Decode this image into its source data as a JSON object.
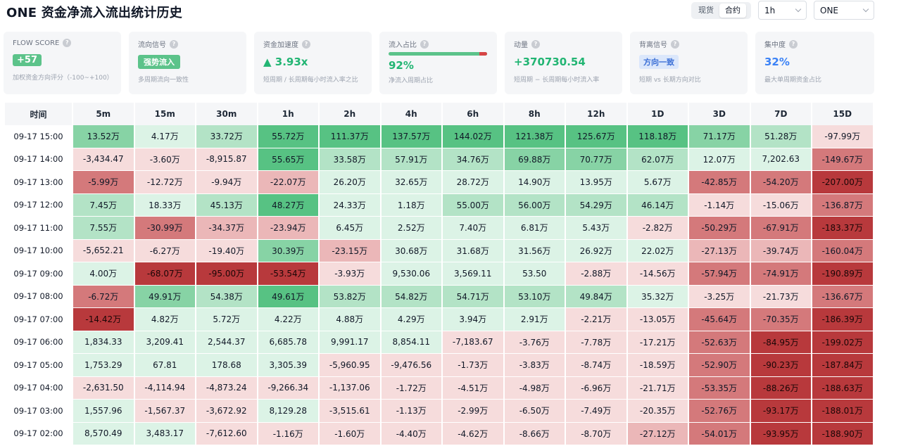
{
  "header": {
    "title": "ONE 资金净流入流出统计历史",
    "market_tabs": [
      {
        "label": "现货",
        "active": false
      },
      {
        "label": "合约",
        "active": true
      }
    ],
    "interval_select": "1h",
    "symbol_select": "ONE"
  },
  "cards": [
    {
      "label": "FLOW SCORE",
      "value": "+57",
      "value_style": "badge-green",
      "sub": "加权资金方向评分（-100~+100）"
    },
    {
      "label": "流向信号",
      "value": "强势流入",
      "value_style": "badge-green-sm",
      "sub": "多周期流向一致性"
    },
    {
      "label": "资金加速度",
      "value": "▲ 3.93x",
      "value_style": "green",
      "sub": "短周期 / 长周期每小时流入率之比"
    },
    {
      "label": "流入占比",
      "value": "92%",
      "value_style": "green",
      "sub": "净流入周期占比",
      "ratio": 0.92
    },
    {
      "label": "动量",
      "value": "+370730.54",
      "value_style": "green",
      "sub": "短周期 − 长周期每小时流入率"
    },
    {
      "label": "背离信号",
      "value": "方向一致",
      "value_style": "badge-blue",
      "sub": "短期 vs 长期方向对比"
    },
    {
      "label": "集中度",
      "value": "32%",
      "value_style": "blue",
      "sub": "最大单周期资金占比"
    }
  ],
  "help_icon": "question-circle-icon",
  "colors": {
    "positive_light": "#dcf3e6",
    "positive_strong": "#57c283",
    "negative_light": "#f6dcdc",
    "negative_strong": "#b8393c"
  },
  "table": {
    "time_header": "时间",
    "columns": [
      "5m",
      "15m",
      "30m",
      "1h",
      "2h",
      "4h",
      "6h",
      "8h",
      "12h",
      "1D",
      "3D",
      "7D",
      "15D"
    ],
    "rows": [
      {
        "time": "09-17 15:00",
        "cells": [
          "13.52万",
          "4.17万",
          "33.72万",
          "55.72万",
          "111.37万",
          "137.57万",
          "144.02万",
          "121.38万",
          "125.67万",
          "118.18万",
          "71.17万",
          "51.28万",
          "-97.99万"
        ],
        "levels": [
          3,
          1,
          2,
          4,
          4,
          4,
          4,
          4,
          4,
          4,
          3,
          2,
          -1
        ]
      },
      {
        "time": "09-17 14:00",
        "cells": [
          "-3,434.47",
          "-3.60万",
          "-8,915.87",
          "55.65万",
          "33.58万",
          "57.91万",
          "34.76万",
          "69.88万",
          "70.77万",
          "62.07万",
          "12.07万",
          "7,202.63",
          "-149.67万"
        ],
        "levels": [
          -1,
          -1,
          -1,
          4,
          2,
          2,
          2,
          3,
          3,
          2,
          1,
          1,
          -3
        ]
      },
      {
        "time": "09-17 13:00",
        "cells": [
          "-5.99万",
          "-12.72万",
          "-9.94万",
          "-22.07万",
          "26.20万",
          "32.65万",
          "28.72万",
          "14.90万",
          "13.95万",
          "5.67万",
          "-42.85万",
          "-54.20万",
          "-207.00万"
        ],
        "levels": [
          -3,
          -1,
          -1,
          -2,
          1,
          1,
          1,
          1,
          1,
          1,
          -3,
          -3,
          -4
        ]
      },
      {
        "time": "09-17 12:00",
        "cells": [
          "7.45万",
          "18.33万",
          "45.13万",
          "48.27万",
          "24.33万",
          "1.18万",
          "55.00万",
          "56.00万",
          "54.29万",
          "46.14万",
          "-1.14万",
          "-15.06万",
          "-136.87万"
        ],
        "levels": [
          2,
          1,
          2,
          4,
          1,
          1,
          2,
          2,
          2,
          2,
          -1,
          -1,
          -3
        ]
      },
      {
        "time": "09-17 11:00",
        "cells": [
          "7.55万",
          "-30.99万",
          "-34.37万",
          "-23.94万",
          "6.45万",
          "2.52万",
          "7.40万",
          "6.81万",
          "5.43万",
          "-2.82万",
          "-50.29万",
          "-67.91万",
          "-183.37万"
        ],
        "levels": [
          2,
          -3,
          -2,
          -2,
          1,
          1,
          1,
          1,
          1,
          -1,
          -3,
          -3,
          -4
        ]
      },
      {
        "time": "09-17 10:00",
        "cells": [
          "-5,652.21",
          "-6.27万",
          "-19.40万",
          "30.39万",
          "-23.15万",
          "30.68万",
          "31.68万",
          "31.56万",
          "26.92万",
          "22.02万",
          "-27.13万",
          "-39.74万",
          "-160.04万"
        ],
        "levels": [
          -1,
          -1,
          -1,
          3,
          -2,
          1,
          1,
          1,
          1,
          1,
          -2,
          -2,
          -3
        ]
      },
      {
        "time": "09-17 09:00",
        "cells": [
          "4.00万",
          "-68.07万",
          "-95.00万",
          "-53.54万",
          "-3.93万",
          "9,530.06",
          "3,569.11",
          "53.50",
          "-2.88万",
          "-14.56万",
          "-57.94万",
          "-74.91万",
          "-190.89万"
        ],
        "levels": [
          1,
          -4,
          -4,
          -4,
          -1,
          1,
          1,
          1,
          -1,
          -1,
          -3,
          -3,
          -4
        ]
      },
      {
        "time": "09-17 08:00",
        "cells": [
          "-6.72万",
          "49.91万",
          "54.38万",
          "49.61万",
          "53.82万",
          "54.82万",
          "54.71万",
          "53.10万",
          "49.84万",
          "35.32万",
          "-3.25万",
          "-21.73万",
          "-136.67万"
        ],
        "levels": [
          -3,
          3,
          2,
          4,
          2,
          2,
          2,
          2,
          2,
          1,
          -1,
          -1,
          -3
        ]
      },
      {
        "time": "09-17 07:00",
        "cells": [
          "-14.42万",
          "4.82万",
          "5.72万",
          "4.22万",
          "4.88万",
          "4.29万",
          "3.94万",
          "2.91万",
          "-2.21万",
          "-13.05万",
          "-45.64万",
          "-70.35万",
          "-186.39万"
        ],
        "levels": [
          -4,
          1,
          1,
          1,
          1,
          1,
          1,
          1,
          -1,
          -1,
          -3,
          -3,
          -4
        ]
      },
      {
        "time": "09-17 06:00",
        "cells": [
          "1,834.33",
          "3,209.41",
          "2,544.37",
          "6,685.78",
          "9,991.17",
          "8,854.11",
          "-7,183.67",
          "-3.76万",
          "-7.78万",
          "-17.21万",
          "-52.63万",
          "-84.95万",
          "-199.02万"
        ],
        "levels": [
          1,
          1,
          1,
          1,
          1,
          1,
          -1,
          -1,
          -1,
          -1,
          -3,
          -4,
          -4
        ]
      },
      {
        "time": "09-17 05:00",
        "cells": [
          "1,753.29",
          "67.81",
          "178.68",
          "3,305.39",
          "-5,960.95",
          "-9,476.56",
          "-1.73万",
          "-3.83万",
          "-8.74万",
          "-18.59万",
          "-52.90万",
          "-90.23万",
          "-187.84万"
        ],
        "levels": [
          1,
          1,
          1,
          1,
          -1,
          -1,
          -1,
          -1,
          -1,
          -1,
          -3,
          -4,
          -4
        ]
      },
      {
        "time": "09-17 04:00",
        "cells": [
          "-2,631.50",
          "-4,114.94",
          "-4,873.24",
          "-9,266.34",
          "-1,137.06",
          "-1.72万",
          "-4.51万",
          "-4.98万",
          "-6.96万",
          "-21.71万",
          "-53.35万",
          "-88.26万",
          "-188.63万"
        ],
        "levels": [
          -1,
          -1,
          -1,
          -1,
          -1,
          -1,
          -1,
          -1,
          -1,
          -1,
          -3,
          -4,
          -4
        ]
      },
      {
        "time": "09-17 03:00",
        "cells": [
          "1,557.96",
          "-1,567.37",
          "-3,672.92",
          "8,129.28",
          "-3,515.61",
          "-1.13万",
          "-2.99万",
          "-6.50万",
          "-7.49万",
          "-20.35万",
          "-52.76万",
          "-93.17万",
          "-188.01万"
        ],
        "levels": [
          1,
          -1,
          -1,
          1,
          -1,
          -1,
          -1,
          -1,
          -1,
          -1,
          -3,
          -4,
          -4
        ]
      },
      {
        "time": "09-17 02:00",
        "cells": [
          "8,570.49",
          "3,483.17",
          "-7,612.60",
          "-1.16万",
          "-1.60万",
          "-4.40万",
          "-4.62万",
          "-8.66万",
          "-8.70万",
          "-27.12万",
          "-54.01万",
          "-93.95万",
          "-188.90万"
        ],
        "levels": [
          1,
          1,
          -1,
          -1,
          -1,
          -1,
          -1,
          -1,
          -1,
          -2,
          -3,
          -4,
          -4
        ]
      }
    ]
  }
}
